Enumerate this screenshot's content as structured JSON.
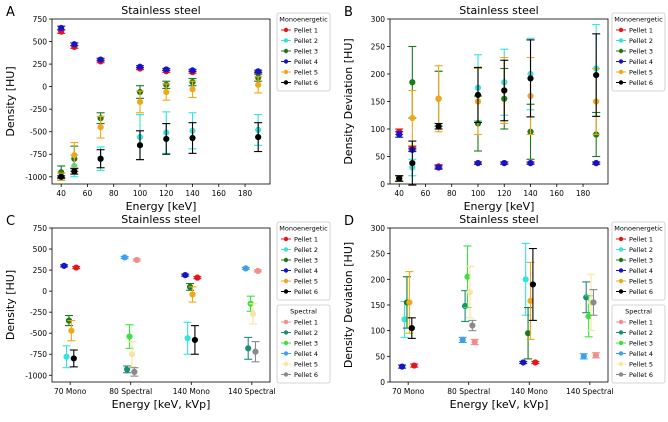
{
  "colors": {
    "Pellet 1 (mono)": "#e8141c",
    "Pellet 2 (mono)": "#33e3e0",
    "Pellet 3 (mono)": "#1c7a1c",
    "Pellet 4 (mono)": "#1414c8",
    "Pellet 5 (mono)": "#f0a818",
    "Pellet 6 (mono)": "#000000",
    "Pellet 1 (spectral)": "#f08c8c",
    "Pellet 2 (spectral)": "#1e8c78",
    "Pellet 3 (spectral)": "#3ce23c",
    "Pellet 4 (spectral)": "#3ca0f0",
    "Pellet 5 (spectral)": "#f8e6a0",
    "Pellet 6 (spectral)": "#8a8a8a"
  },
  "chart_data": [
    {
      "panel": "A",
      "type": "scatter",
      "title": "Stainless steel",
      "xlabel": "Energy [keV]",
      "ylabel": "Density [HU]",
      "xlim": [
        33,
        199
      ],
      "ylim": [
        -1080,
        750
      ],
      "xticks": [
        "40",
        "60",
        "80",
        "100",
        "120",
        "140",
        "160",
        "180"
      ],
      "yticks": [
        "-1000",
        "-750",
        "-500",
        "-250",
        "0",
        "250",
        "500",
        "750"
      ],
      "x_categorical": false,
      "legend_groups": [
        {
          "title": "Monoenergetic",
          "entries": [
            "Pellet 1",
            "Pellet 2",
            "Pellet 3",
            "Pellet 4",
            "Pellet 5",
            "Pellet 6"
          ]
        }
      ],
      "series": [
        {
          "name": "Pellet 1",
          "color_key": "Pellet 1 (mono)",
          "x": [
            40,
            50,
            70,
            100,
            120,
            140,
            190
          ],
          "y": [
            610,
            440,
            280,
            200,
            170,
            160,
            150
          ],
          "err": [
            20,
            15,
            15,
            12,
            12,
            12,
            12
          ]
        },
        {
          "name": "Pellet 2",
          "color_key": "Pellet 2 (mono)",
          "x": [
            40,
            50,
            70,
            100,
            120,
            140,
            190
          ],
          "y": [
            -1000,
            -880,
            -800,
            -560,
            -510,
            -490,
            -480
          ],
          "err": [
            40,
            120,
            130,
            250,
            230,
            200,
            170
          ]
        },
        {
          "name": "Pellet 3",
          "color_key": "Pellet 3 (mono)",
          "x": [
            40,
            50,
            70,
            100,
            120,
            140,
            190
          ],
          "y": [
            -950,
            -800,
            -350,
            -60,
            20,
            50,
            100
          ],
          "err": [
            70,
            140,
            60,
            70,
            40,
            40,
            40
          ]
        },
        {
          "name": "Pellet 4",
          "color_key": "Pellet 4 (mono)",
          "x": [
            40,
            50,
            70,
            100,
            120,
            140,
            190
          ],
          "y": [
            650,
            470,
            300,
            220,
            190,
            180,
            170
          ],
          "err": [
            20,
            15,
            15,
            12,
            12,
            12,
            12
          ]
        },
        {
          "name": "Pellet 5",
          "color_key": "Pellet 5 (mono)",
          "x": [
            40,
            50,
            70,
            100,
            120,
            140,
            190
          ],
          "y": [
            -1000,
            -760,
            -450,
            -170,
            -60,
            -30,
            20
          ],
          "err": [
            40,
            140,
            120,
            120,
            90,
            90,
            90
          ]
        },
        {
          "name": "Pellet 6",
          "color_key": "Pellet 6 (mono)",
          "x": [
            40,
            50,
            70,
            100,
            120,
            140,
            190
          ],
          "y": [
            -1000,
            -940,
            -800,
            -650,
            -580,
            -570,
            -560
          ],
          "err": [
            10,
            30,
            100,
            160,
            170,
            170,
            160
          ]
        }
      ]
    },
    {
      "panel": "B",
      "type": "scatter",
      "title": "Stainless steel",
      "xlabel": "Energy [keV]",
      "ylabel": "Density Deviation [HU]",
      "xlim": [
        33,
        199
      ],
      "ylim": [
        0,
        300
      ],
      "xticks": [
        "40",
        "60",
        "80",
        "100",
        "120",
        "140",
        "160",
        "180"
      ],
      "yticks": [
        "0",
        "50",
        "100",
        "150",
        "200",
        "250",
        "300"
      ],
      "x_categorical": false,
      "legend_groups": [
        {
          "title": "Monoenergetic",
          "entries": [
            "Pellet 1",
            "Pellet 2",
            "Pellet 3",
            "Pellet 4",
            "Pellet 5",
            "Pellet 6"
          ]
        }
      ],
      "series": [
        {
          "name": "Pellet 1",
          "color_key": "Pellet 1 (mono)",
          "x": [
            40,
            50,
            70,
            100,
            120,
            140,
            190
          ],
          "y": [
            95,
            65,
            32,
            38,
            38,
            38,
            38
          ],
          "err": [
            5,
            3,
            3,
            2,
            2,
            2,
            2
          ]
        },
        {
          "name": "Pellet 2",
          "color_key": "Pellet 2 (mono)",
          "x": [
            40,
            50,
            70,
            100,
            120,
            140,
            190
          ],
          "y": [
            10,
            30,
            155,
            175,
            185,
            200,
            210
          ],
          "err": [
            5,
            15,
            50,
            60,
            60,
            65,
            80
          ]
        },
        {
          "name": "Pellet 3",
          "color_key": "Pellet 3 (mono)",
          "x": [
            40,
            50,
            70,
            100,
            120,
            140,
            190
          ],
          "y": [
            10,
            185,
            155,
            110,
            155,
            95,
            90
          ],
          "err": [
            5,
            65,
            50,
            50,
            55,
            50,
            40
          ]
        },
        {
          "name": "Pellet 4",
          "color_key": "Pellet 4 (mono)",
          "x": [
            40,
            50,
            70,
            100,
            120,
            140,
            190
          ],
          "y": [
            90,
            62,
            30,
            38,
            38,
            38,
            38
          ],
          "err": [
            5,
            3,
            3,
            2,
            2,
            2,
            2
          ]
        },
        {
          "name": "Pellet 5",
          "color_key": "Pellet 5 (mono)",
          "x": [
            40,
            50,
            70,
            100,
            120,
            140,
            190
          ],
          "y": [
            10,
            120,
            155,
            150,
            170,
            160,
            150
          ],
          "err": [
            5,
            50,
            60,
            60,
            60,
            70,
            60
          ]
        },
        {
          "name": "Pellet 6",
          "color_key": "Pellet 6 (mono)",
          "x": [
            40,
            50,
            70,
            100,
            120,
            140,
            190
          ],
          "y": [
            10,
            38,
            105,
            162,
            170,
            192,
            198
          ],
          "err": [
            5,
            40,
            5,
            50,
            55,
            70,
            75
          ]
        }
      ]
    },
    {
      "panel": "C",
      "type": "scatter",
      "title": "Stainless steel",
      "xlabel": "Energy [keV, kVp]",
      "ylabel": "Density [HU]",
      "xlim": [
        -0.3,
        3.3
      ],
      "ylim": [
        -1080,
        750
      ],
      "xticks": [
        "70 Mono",
        "80 Spectral",
        "140 Mono",
        "140 Spectral"
      ],
      "yticks": [
        "-1000",
        "-750",
        "-500",
        "-250",
        "0",
        "250",
        "500",
        "750"
      ],
      "x_categorical": true,
      "legend_groups": [
        {
          "title": "Monoenergetic",
          "entries": [
            "Pellet 1",
            "Pellet 2",
            "Pellet 3",
            "Pellet 4",
            "Pellet 5",
            "Pellet 6"
          ]
        },
        {
          "title": "Spectral",
          "entries": [
            "Pellet 1",
            "Pellet 2",
            "Pellet 3",
            "Pellet 4",
            "Pellet 5",
            "Pellet 6"
          ]
        }
      ],
      "series": [
        {
          "name": "Pellet 1",
          "group": "Monoenergetic",
          "color_key": "Pellet 1 (mono)",
          "x": [
            0.1,
            2.1
          ],
          "y": [
            280,
            160
          ],
          "err": [
            12,
            12
          ]
        },
        {
          "name": "Pellet 2",
          "group": "Monoenergetic",
          "color_key": "Pellet 2 (mono)",
          "x": [
            -0.06,
            1.94
          ],
          "y": [
            -780,
            -560
          ],
          "err": [
            130,
            190
          ]
        },
        {
          "name": "Pellet 3",
          "group": "Monoenergetic",
          "color_key": "Pellet 3 (mono)",
          "x": [
            -0.02,
            1.98
          ],
          "y": [
            -350,
            50
          ],
          "err": [
            60,
            40
          ]
        },
        {
          "name": "Pellet 4",
          "group": "Monoenergetic",
          "color_key": "Pellet 4 (mono)",
          "x": [
            -0.1,
            1.9
          ],
          "y": [
            300,
            190
          ],
          "err": [
            12,
            12
          ]
        },
        {
          "name": "Pellet 5",
          "group": "Monoenergetic",
          "color_key": "Pellet 5 (mono)",
          "x": [
            0.02,
            2.02
          ],
          "y": [
            -470,
            -40
          ],
          "err": [
            120,
            90
          ]
        },
        {
          "name": "Pellet 6",
          "group": "Monoenergetic",
          "color_key": "Pellet 6 (mono)",
          "x": [
            0.06,
            2.06
          ],
          "y": [
            -800,
            -580
          ],
          "err": [
            100,
            170
          ]
        },
        {
          "name": "Pellet 1",
          "group": "Spectral",
          "color_key": "Pellet 1 (spectral)",
          "x": [
            1.1,
            3.1
          ],
          "y": [
            370,
            240
          ],
          "err": [
            12,
            12
          ]
        },
        {
          "name": "Pellet 2",
          "group": "Spectral",
          "color_key": "Pellet 2 (spectral)",
          "x": [
            0.94,
            2.94
          ],
          "y": [
            -930,
            -680
          ],
          "err": [
            40,
            130
          ]
        },
        {
          "name": "Pellet 3",
          "group": "Spectral",
          "color_key": "Pellet 3 (spectral)",
          "x": [
            0.98,
            2.98
          ],
          "y": [
            -540,
            -150
          ],
          "err": [
            140,
            90
          ]
        },
        {
          "name": "Pellet 4",
          "group": "Spectral",
          "color_key": "Pellet 4 (spectral)",
          "x": [
            0.9,
            2.9
          ],
          "y": [
            400,
            270
          ],
          "err": [
            12,
            12
          ]
        },
        {
          "name": "Pellet 5",
          "group": "Spectral",
          "color_key": "Pellet 5 (spectral)",
          "x": [
            1.02,
            3.02
          ],
          "y": [
            -750,
            -270
          ],
          "err": [
            150,
            120
          ]
        },
        {
          "name": "Pellet 6",
          "group": "Spectral",
          "color_key": "Pellet 6 (spectral)",
          "x": [
            1.06,
            3.06
          ],
          "y": [
            -960,
            -720
          ],
          "err": [
            50,
            120
          ]
        }
      ]
    },
    {
      "panel": "D",
      "type": "scatter",
      "title": "Stainless steel",
      "xlabel": "Energy [keV, kVp]",
      "ylabel": "Density Deviation [HU]",
      "xlim": [
        -0.3,
        3.3
      ],
      "ylim": [
        0,
        300
      ],
      "xticks": [
        "70 Mono",
        "80 Spectral",
        "140 Mono",
        "140 Spectral"
      ],
      "yticks": [
        "0",
        "50",
        "100",
        "150",
        "200",
        "250",
        "300"
      ],
      "x_categorical": true,
      "legend_groups": [
        {
          "title": "Monoenergetic",
          "entries": [
            "Pellet 1",
            "Pellet 2",
            "Pellet 3",
            "Pellet 4",
            "Pellet 5",
            "Pellet 6"
          ]
        },
        {
          "title": "Spectral",
          "entries": [
            "Pellet 1",
            "Pellet 2",
            "Pellet 3",
            "Pellet 4",
            "Pellet 5",
            "Pellet 6"
          ]
        }
      ],
      "series": [
        {
          "name": "Pellet 1",
          "group": "Monoenergetic",
          "color_key": "Pellet 1 (mono)",
          "x": [
            0.1,
            2.1
          ],
          "y": [
            32,
            38
          ],
          "err": [
            3,
            2
          ]
        },
        {
          "name": "Pellet 2",
          "group": "Monoenergetic",
          "color_key": "Pellet 2 (mono)",
          "x": [
            -0.06,
            1.94
          ],
          "y": [
            122,
            200
          ],
          "err": [
            35,
            70
          ]
        },
        {
          "name": "Pellet 3",
          "group": "Monoenergetic",
          "color_key": "Pellet 3 (mono)",
          "x": [
            -0.02,
            1.98
          ],
          "y": [
            155,
            95
          ],
          "err": [
            50,
            50
          ]
        },
        {
          "name": "Pellet 4",
          "group": "Monoenergetic",
          "color_key": "Pellet 4 (mono)",
          "x": [
            -0.1,
            1.9
          ],
          "y": [
            30,
            38
          ],
          "err": [
            3,
            2
          ]
        },
        {
          "name": "Pellet 5",
          "group": "Monoenergetic",
          "color_key": "Pellet 5 (mono)",
          "x": [
            0.02,
            2.02
          ],
          "y": [
            155,
            158
          ],
          "err": [
            60,
            75
          ]
        },
        {
          "name": "Pellet 6",
          "group": "Monoenergetic",
          "color_key": "Pellet 6 (mono)",
          "x": [
            0.06,
            2.06
          ],
          "y": [
            105,
            190
          ],
          "err": [
            20,
            70
          ]
        },
        {
          "name": "Pellet 1",
          "group": "Spectral",
          "color_key": "Pellet 1 (spectral)",
          "x": [
            1.1,
            3.1
          ],
          "y": [
            78,
            52
          ],
          "err": [
            5,
            5
          ]
        },
        {
          "name": "Pellet 2",
          "group": "Spectral",
          "color_key": "Pellet 2 (spectral)",
          "x": [
            0.94,
            2.94
          ],
          "y": [
            148,
            165
          ],
          "err": [
            30,
            30
          ]
        },
        {
          "name": "Pellet 3",
          "group": "Spectral",
          "color_key": "Pellet 3 (spectral)",
          "x": [
            0.98,
            2.98
          ],
          "y": [
            205,
            128
          ],
          "err": [
            60,
            40
          ]
        },
        {
          "name": "Pellet 4",
          "group": "Spectral",
          "color_key": "Pellet 4 (spectral)",
          "x": [
            0.9,
            2.9
          ],
          "y": [
            82,
            50
          ],
          "err": [
            5,
            5
          ]
        },
        {
          "name": "Pellet 5",
          "group": "Spectral",
          "color_key": "Pellet 5 (spectral)",
          "x": [
            1.02,
            3.02
          ],
          "y": [
            175,
            155
          ],
          "err": [
            50,
            55
          ]
        },
        {
          "name": "Pellet 6",
          "group": "Spectral",
          "color_key": "Pellet 6 (spectral)",
          "x": [
            1.06,
            3.06
          ],
          "y": [
            110,
            155
          ],
          "err": [
            10,
            25
          ]
        }
      ]
    }
  ]
}
